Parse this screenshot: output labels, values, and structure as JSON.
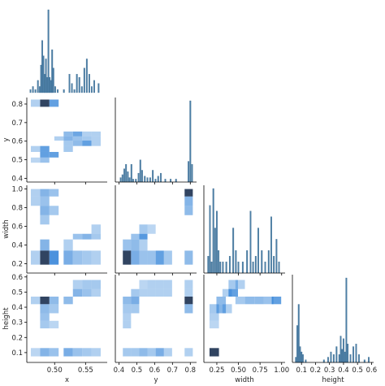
{
  "chart_data": {
    "type": "pairgrid",
    "corner": true,
    "variables": [
      "x",
      "y",
      "width",
      "height"
    ],
    "hist_color": "#4c7fa6",
    "heat_color": "#1f77d4",
    "axes": {
      "x": {
        "range": [
          0.455,
          0.585
        ],
        "ticks": [
          0.5,
          0.55
        ],
        "tick_labels": [
          "0.50",
          "0.55"
        ]
      },
      "y": {
        "range": [
          0.38,
          0.835
        ],
        "ticks": [
          0.4,
          0.5,
          0.6,
          0.7,
          0.8
        ],
        "tick_labels": [
          "0.4",
          "0.5",
          "0.6",
          "0.7",
          "0.8"
        ]
      },
      "width": {
        "range": [
          0.1,
          1.04
        ],
        "ticks": [
          0.2,
          0.4,
          0.6,
          0.8,
          1.0
        ],
        "tick_labels": [
          "0.2",
          "0.4",
          "0.6",
          "0.8",
          "1.0"
        ],
        "x_tick_labels": [
          "0.25",
          "0.50",
          "0.75",
          "1.00"
        ],
        "x_ticks": [
          0.25,
          0.5,
          0.75,
          1.0
        ]
      },
      "height": {
        "range": [
          0.035,
          0.615
        ],
        "ticks": [
          0.1,
          0.2,
          0.3,
          0.4,
          0.5,
          0.6
        ],
        "tick_labels": [
          "0.1",
          "0.2",
          "0.3",
          "0.4",
          "0.5",
          "0.6"
        ]
      }
    },
    "diagonal_histograms": {
      "x": {
        "bins": [
          0.461,
          0.465,
          0.469,
          0.473,
          0.476,
          0.478,
          0.48,
          0.482,
          0.484,
          0.486,
          0.488,
          0.49,
          0.492,
          0.494,
          0.496,
          0.498,
          0.501,
          0.505,
          0.515,
          0.524,
          0.528,
          0.532,
          0.536,
          0.54,
          0.544,
          0.548,
          0.552,
          0.556,
          0.56,
          0.564,
          0.571
        ],
        "counts": [
          1,
          2,
          1,
          4,
          2,
          9,
          17,
          12,
          6,
          11,
          5,
          27,
          5,
          4,
          14,
          8,
          2,
          1,
          1,
          6,
          3,
          1,
          6,
          5,
          2,
          8,
          11,
          6,
          2,
          4,
          3
        ]
      },
      "y": {
        "bins": [
          0.41,
          0.42,
          0.43,
          0.44,
          0.45,
          0.46,
          0.47,
          0.48,
          0.495,
          0.51,
          0.52,
          0.53,
          0.545,
          0.56,
          0.575,
          0.59,
          0.605,
          0.62,
          0.635,
          0.66,
          0.69,
          0.72,
          0.79,
          0.8,
          0.81
        ],
        "counts": [
          3,
          5,
          9,
          12,
          7,
          3,
          12,
          2,
          2,
          6,
          15,
          8,
          4,
          3,
          3,
          8,
          2,
          4,
          6,
          2,
          2,
          2,
          14,
          55,
          12
        ]
      },
      "width": {
        "bins": [
          0.15,
          0.17,
          0.19,
          0.21,
          0.23,
          0.25,
          0.27,
          0.29,
          0.32,
          0.36,
          0.4,
          0.44,
          0.47,
          0.5,
          0.55,
          0.6,
          0.64,
          0.67,
          0.7,
          0.73,
          0.77,
          0.81,
          0.85,
          0.88,
          0.91,
          0.94,
          0.97
        ],
        "counts": [
          3,
          12,
          2,
          15,
          8,
          11,
          4,
          2,
          2,
          2,
          3,
          8,
          4,
          2,
          2,
          4,
          11,
          2,
          3,
          8,
          4,
          2,
          4,
          10,
          3,
          6,
          2
        ]
      },
      "height": {
        "bins": [
          0.06,
          0.07,
          0.08,
          0.09,
          0.1,
          0.11,
          0.13,
          0.26,
          0.29,
          0.31,
          0.33,
          0.35,
          0.37,
          0.38,
          0.39,
          0.4,
          0.41,
          0.42,
          0.43,
          0.45,
          0.47,
          0.49,
          0.51,
          0.55,
          0.58
        ],
        "counts": [
          2,
          14,
          22,
          6,
          4,
          3,
          1,
          1,
          2,
          4,
          3,
          6,
          3,
          10,
          5,
          9,
          4,
          32,
          7,
          3,
          6,
          7,
          3,
          1,
          2
        ]
      }
    },
    "bivariate_heatmaps": [
      {
        "x": "x",
        "y": "y",
        "cells": [
          [
            0.469,
            0.785,
            0.824,
            0.35
          ],
          [
            0.484,
            0.785,
            0.824,
            0.9
          ],
          [
            0.499,
            0.785,
            0.824,
            0.7
          ],
          [
            0.522,
            0.626,
            0.652,
            0.5
          ],
          [
            0.537,
            0.626,
            0.652,
            0.65
          ],
          [
            0.552,
            0.626,
            0.652,
            0.35
          ],
          [
            0.567,
            0.626,
            0.652,
            0.35
          ],
          [
            0.507,
            0.603,
            0.626,
            0.35
          ],
          [
            0.522,
            0.603,
            0.626,
            0.55
          ],
          [
            0.537,
            0.603,
            0.626,
            0.45
          ],
          [
            0.552,
            0.603,
            0.626,
            0.4
          ],
          [
            0.567,
            0.603,
            0.626,
            0.35
          ],
          [
            0.522,
            0.574,
            0.603,
            0.4
          ],
          [
            0.537,
            0.574,
            0.603,
            0.5
          ],
          [
            0.552,
            0.574,
            0.603,
            0.7
          ],
          [
            0.567,
            0.574,
            0.603,
            0.35
          ],
          [
            0.469,
            0.542,
            0.574,
            0.35
          ],
          [
            0.484,
            0.542,
            0.574,
            0.7
          ],
          [
            0.522,
            0.542,
            0.574,
            0.4
          ],
          [
            0.484,
            0.512,
            0.542,
            0.7
          ],
          [
            0.499,
            0.512,
            0.542,
            0.7
          ],
          [
            0.469,
            0.484,
            0.512,
            0.3
          ],
          [
            0.484,
            0.484,
            0.512,
            0.45
          ]
        ]
      },
      {
        "x": "x",
        "y": "width",
        "cells": [
          [
            0.469,
            0.92,
            1.0,
            0.35
          ],
          [
            0.484,
            0.92,
            1.0,
            0.55
          ],
          [
            0.499,
            0.92,
            1.0,
            0.45
          ],
          [
            0.469,
            0.82,
            0.92,
            0.35
          ],
          [
            0.484,
            0.82,
            0.92,
            0.45
          ],
          [
            0.484,
            0.72,
            0.82,
            0.55
          ],
          [
            0.499,
            0.72,
            0.82,
            0.4
          ],
          [
            0.484,
            0.62,
            0.72,
            0.4
          ],
          [
            0.567,
            0.52,
            0.62,
            0.35
          ],
          [
            0.537,
            0.46,
            0.52,
            0.45
          ],
          [
            0.552,
            0.46,
            0.52,
            0.55
          ],
          [
            0.567,
            0.46,
            0.52,
            0.4
          ],
          [
            0.484,
            0.34,
            0.46,
            0.55
          ],
          [
            0.522,
            0.34,
            0.46,
            0.35
          ],
          [
            0.469,
            0.19,
            0.34,
            0.35
          ],
          [
            0.484,
            0.19,
            0.34,
            0.95
          ],
          [
            0.499,
            0.19,
            0.34,
            0.8
          ],
          [
            0.522,
            0.19,
            0.34,
            0.6
          ],
          [
            0.537,
            0.19,
            0.34,
            0.45
          ],
          [
            0.552,
            0.19,
            0.34,
            0.4
          ],
          [
            0.567,
            0.19,
            0.34,
            0.35
          ]
        ]
      },
      {
        "x": "x",
        "y": "height",
        "cells": [
          [
            0.537,
            0.52,
            0.58,
            0.35
          ],
          [
            0.552,
            0.52,
            0.58,
            0.4
          ],
          [
            0.567,
            0.52,
            0.58,
            0.4
          ],
          [
            0.537,
            0.47,
            0.52,
            0.55
          ],
          [
            0.552,
            0.47,
            0.52,
            0.45
          ],
          [
            0.567,
            0.47,
            0.52,
            0.35
          ],
          [
            0.484,
            0.42,
            0.47,
            0.95
          ],
          [
            0.499,
            0.42,
            0.47,
            0.5
          ],
          [
            0.522,
            0.42,
            0.47,
            0.5
          ],
          [
            0.469,
            0.42,
            0.47,
            0.35
          ],
          [
            0.484,
            0.36,
            0.42,
            0.5
          ],
          [
            0.499,
            0.36,
            0.42,
            0.4
          ],
          [
            0.484,
            0.31,
            0.36,
            0.45
          ],
          [
            0.484,
            0.26,
            0.31,
            0.4
          ],
          [
            0.499,
            0.26,
            0.31,
            0.3
          ],
          [
            0.469,
            0.075,
            0.13,
            0.3
          ],
          [
            0.484,
            0.075,
            0.13,
            0.55
          ],
          [
            0.499,
            0.075,
            0.13,
            0.45
          ],
          [
            0.522,
            0.075,
            0.13,
            0.6
          ],
          [
            0.537,
            0.075,
            0.13,
            0.45
          ],
          [
            0.552,
            0.075,
            0.13,
            0.4
          ],
          [
            0.567,
            0.075,
            0.13,
            0.35
          ]
        ]
      },
      {
        "x": "y",
        "y": "width",
        "cells": [
          [
            0.791,
            0.92,
            1.0,
            0.95
          ],
          [
            0.791,
            0.82,
            0.92,
            0.55
          ],
          [
            0.791,
            0.72,
            0.82,
            0.5
          ],
          [
            0.537,
            0.52,
            0.62,
            0.4
          ],
          [
            0.583,
            0.52,
            0.62,
            0.3
          ],
          [
            0.491,
            0.46,
            0.52,
            0.45
          ],
          [
            0.537,
            0.46,
            0.52,
            0.75
          ],
          [
            0.445,
            0.34,
            0.46,
            0.45
          ],
          [
            0.491,
            0.34,
            0.46,
            0.5
          ],
          [
            0.537,
            0.34,
            0.46,
            0.35
          ],
          [
            0.445,
            0.19,
            0.34,
            0.95
          ],
          [
            0.491,
            0.19,
            0.34,
            0.6
          ],
          [
            0.537,
            0.19,
            0.34,
            0.45
          ],
          [
            0.583,
            0.19,
            0.34,
            0.45
          ],
          [
            0.629,
            0.19,
            0.34,
            0.7
          ],
          [
            0.675,
            0.19,
            0.34,
            0.4
          ],
          [
            0.791,
            0.19,
            0.34,
            0.5
          ]
        ]
      },
      {
        "x": "y",
        "y": "height",
        "cells": [
          [
            0.537,
            0.52,
            0.58,
            0.3
          ],
          [
            0.583,
            0.52,
            0.58,
            0.35
          ],
          [
            0.629,
            0.52,
            0.58,
            0.35
          ],
          [
            0.675,
            0.52,
            0.58,
            0.35
          ],
          [
            0.791,
            0.52,
            0.58,
            0.35
          ],
          [
            0.491,
            0.47,
            0.52,
            0.4
          ],
          [
            0.537,
            0.47,
            0.52,
            0.35
          ],
          [
            0.583,
            0.47,
            0.52,
            0.35
          ],
          [
            0.629,
            0.47,
            0.52,
            0.35
          ],
          [
            0.675,
            0.47,
            0.52,
            0.35
          ],
          [
            0.791,
            0.47,
            0.52,
            0.35
          ],
          [
            0.445,
            0.42,
            0.47,
            0.5
          ],
          [
            0.491,
            0.42,
            0.47,
            0.6
          ],
          [
            0.791,
            0.42,
            0.47,
            0.95
          ],
          [
            0.445,
            0.36,
            0.42,
            0.4
          ],
          [
            0.491,
            0.36,
            0.42,
            0.4
          ],
          [
            0.791,
            0.36,
            0.42,
            0.5
          ],
          [
            0.445,
            0.31,
            0.36,
            0.35
          ],
          [
            0.445,
            0.26,
            0.31,
            0.35
          ],
          [
            0.445,
            0.075,
            0.13,
            0.4
          ],
          [
            0.491,
            0.075,
            0.13,
            0.4
          ],
          [
            0.537,
            0.075,
            0.13,
            0.5
          ],
          [
            0.583,
            0.075,
            0.13,
            0.4
          ],
          [
            0.629,
            0.075,
            0.13,
            0.6
          ],
          [
            0.675,
            0.075,
            0.13,
            0.35
          ],
          [
            0.791,
            0.075,
            0.13,
            0.35
          ]
        ]
      },
      {
        "x": "width",
        "y": "height",
        "cells": [
          [
            0.44,
            0.52,
            0.58,
            0.4
          ],
          [
            0.52,
            0.52,
            0.58,
            0.35
          ],
          [
            0.37,
            0.47,
            0.52,
            0.35
          ],
          [
            0.44,
            0.47,
            0.52,
            0.7
          ],
          [
            0.3,
            0.42,
            0.47,
            0.5
          ],
          [
            0.52,
            0.42,
            0.47,
            0.4
          ],
          [
            0.63,
            0.42,
            0.47,
            0.5
          ],
          [
            0.74,
            0.42,
            0.47,
            0.5
          ],
          [
            0.85,
            0.42,
            0.47,
            0.45
          ],
          [
            0.94,
            0.42,
            0.47,
            0.7
          ],
          [
            0.22,
            0.36,
            0.42,
            0.4
          ],
          [
            0.3,
            0.36,
            0.42,
            0.55
          ],
          [
            0.37,
            0.36,
            0.42,
            0.35
          ],
          [
            0.22,
            0.31,
            0.36,
            0.35
          ],
          [
            0.22,
            0.26,
            0.31,
            0.3
          ],
          [
            0.22,
            0.075,
            0.13,
            0.98
          ]
        ]
      }
    ]
  }
}
